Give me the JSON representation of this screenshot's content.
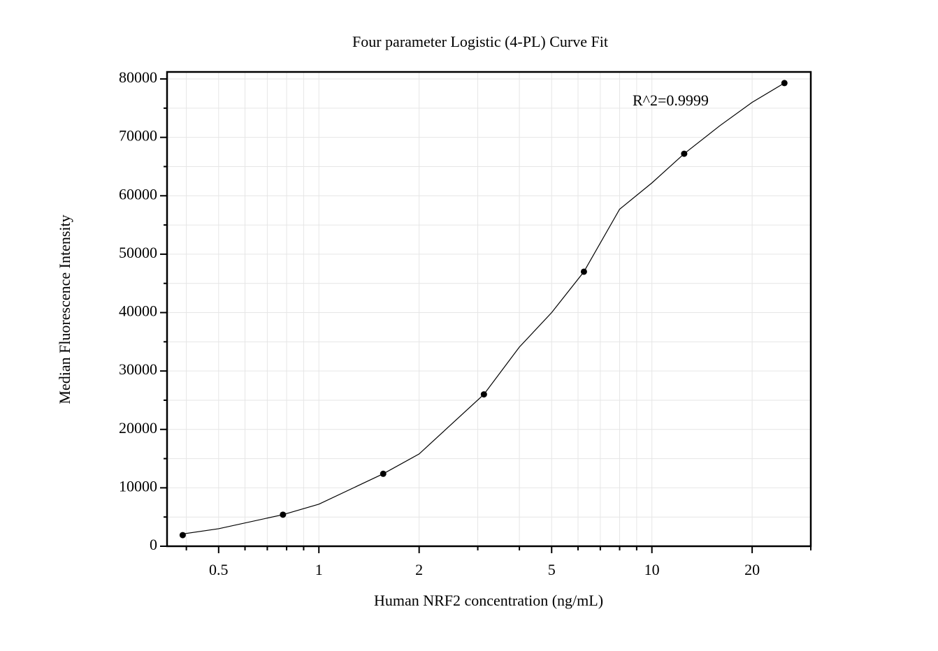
{
  "chart_data": {
    "type": "scatter",
    "title": "Four parameter Logistic (4-PL) Curve Fit",
    "x_label": "Human NRF2 concentration (ng/mL)",
    "y_label": "Median Fluorescence Intensity",
    "annotation": "R^2=0.9999",
    "x_scale": "log",
    "xlim": [
      0.35,
      30
    ],
    "ylim": [
      0,
      81200
    ],
    "xticks": [
      0.5,
      1,
      2,
      5,
      10,
      20
    ],
    "xminorticks": [
      0.4,
      0.6,
      0.7,
      0.8,
      0.9,
      3,
      4,
      6,
      7,
      8,
      9,
      30
    ],
    "yticks": [
      0,
      10000,
      20000,
      30000,
      40000,
      50000,
      60000,
      70000,
      80000
    ],
    "yminorticks": [
      5000,
      15000,
      25000,
      35000,
      45000,
      55000,
      65000,
      75000
    ],
    "grid": true,
    "series": [
      {
        "type": "scatter",
        "color": "#000000",
        "x": [
          0.39,
          0.78,
          1.56,
          3.13,
          6.25,
          12.5,
          25
        ],
        "values": [
          1900,
          5400,
          12400,
          26000,
          47000,
          67200,
          79300
        ]
      },
      {
        "type": "line",
        "color": "#000000",
        "x": [
          0.39,
          0.5,
          0.78,
          1,
          1.56,
          2,
          3.13,
          4,
          5,
          6.25,
          8,
          10,
          12.5,
          16,
          20,
          25
        ],
        "values": [
          2100,
          3000,
          5400,
          7200,
          12400,
          15800,
          26000,
          34100,
          40000,
          47000,
          57700,
          62200,
          67200,
          72000,
          76000,
          79300
        ]
      }
    ]
  }
}
